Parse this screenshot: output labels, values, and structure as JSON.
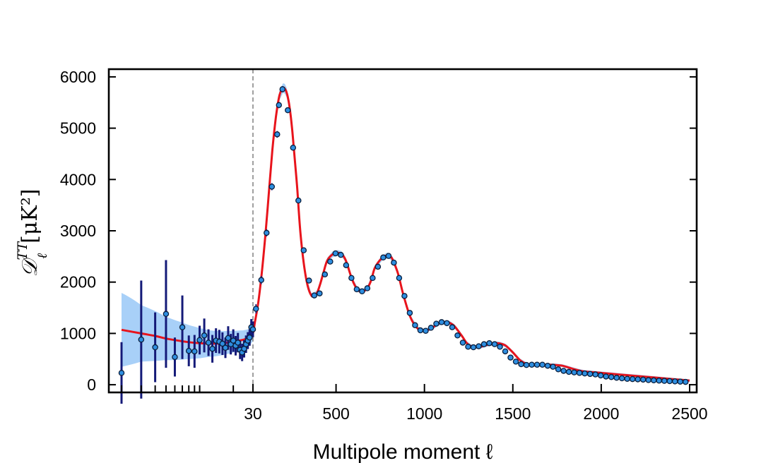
{
  "chart_data": {
    "type": "scatter",
    "title": "",
    "xlabel": "Multipole moment ℓ",
    "ylabel_main": "𝒟",
    "ylabel_sub": "ℓ",
    "ylabel_sup": "TT",
    "ylabel_unit": "[μK²]",
    "x_scale": "hybrid: logarithmic for ℓ ≤ 30, linear for ℓ ≥ 30",
    "xlim": [
      2,
      2500
    ],
    "ylim": [
      -150,
      6150
    ],
    "grid": false,
    "x_tick_labels": [
      {
        "value": 30,
        "label": "30"
      },
      {
        "value": 500,
        "label": "500"
      },
      {
        "value": 1000,
        "label": "1000"
      },
      {
        "value": 1500,
        "label": "1500"
      },
      {
        "value": 2000,
        "label": "2000"
      },
      {
        "value": 2500,
        "label": "2500"
      }
    ],
    "x_minor_ticks_log": [
      2,
      3,
      4,
      5,
      6,
      7,
      8,
      9,
      10,
      20
    ],
    "y_ticks": [
      0,
      1000,
      2000,
      3000,
      4000,
      5000,
      6000
    ],
    "y_tick_labels": [
      "0",
      "1000",
      "2000",
      "3000",
      "4000",
      "5000",
      "6000"
    ],
    "colors": {
      "model_line": "#e8141c",
      "uncertainty_band": "#a8d0f8",
      "marker_fill": "#2e8ee0",
      "marker_edge": "#0a1e3c",
      "error_bar": "#141a78",
      "divider": "#888888"
    },
    "series": [
      {
        "role": "best-fit model",
        "x": [
          2,
          3,
          4,
          5,
          6,
          8,
          10,
          13,
          16,
          20,
          25,
          28,
          30,
          40,
          60,
          80,
          100,
          120,
          140,
          160,
          180,
          200,
          210,
          220,
          230,
          240,
          250,
          260,
          280,
          300,
          330,
          360,
          390,
          410,
          430,
          450,
          480,
          510,
          530,
          545,
          560,
          590,
          620,
          650,
          680,
          700,
          720,
          760,
          790,
          805,
          820,
          850,
          880,
          920,
          960,
          1000,
          1040,
          1080,
          1120,
          1140,
          1170,
          1210,
          1240,
          1270,
          1300,
          1330,
          1370,
          1410,
          1430,
          1460,
          1500,
          1540,
          1580,
          1620,
          1660,
          1700,
          1740,
          1780,
          1820,
          1860,
          1900,
          2000,
          2100,
          2200,
          2300,
          2400,
          2500
        ],
        "y": [
          1070,
          1000,
          950,
          900,
          870,
          830,
          810,
          800,
          810,
          840,
          880,
          930,
          1000,
          1200,
          1600,
          2180,
          2900,
          3740,
          4580,
          5220,
          5640,
          5780,
          5770,
          5700,
          5560,
          5340,
          5040,
          4660,
          3840,
          2900,
          2080,
          1740,
          1780,
          1960,
          2200,
          2420,
          2540,
          2570,
          2550,
          2490,
          2380,
          2060,
          1860,
          1810,
          1900,
          2050,
          2280,
          2470,
          2520,
          2500,
          2440,
          2170,
          1760,
          1320,
          1100,
          1050,
          1100,
          1190,
          1220,
          1210,
          1140,
          960,
          810,
          740,
          730,
          750,
          790,
          810,
          800,
          760,
          630,
          480,
          400,
          380,
          385,
          390,
          385,
          370,
          330,
          290,
          260,
          230,
          200,
          170,
          140,
          110,
          80
        ]
      },
      {
        "role": "low-ℓ band half-width",
        "x": [
          2,
          3,
          5,
          8,
          12,
          20,
          30
        ],
        "y": [
          720,
          550,
          420,
          330,
          260,
          210,
          150
        ]
      },
      {
        "role": "low-ℓ measurements",
        "x": [
          2,
          3,
          4,
          5,
          6,
          7,
          8,
          9,
          10,
          11,
          12,
          13,
          14,
          15,
          16,
          17,
          18,
          19,
          20,
          21,
          22,
          23,
          24,
          25,
          26,
          27,
          28,
          29,
          30
        ],
        "y": [
          230,
          880,
          730,
          1380,
          540,
          1120,
          660,
          650,
          870,
          960,
          820,
          700,
          860,
          840,
          800,
          720,
          910,
          790,
          860,
          760,
          820,
          680,
          630,
          700,
          790,
          860,
          920,
          1120,
          1080
        ],
        "err": [
          600,
          1150,
          680,
          1050,
          380,
          620,
          300,
          320,
          280,
          330,
          260,
          270,
          240,
          230,
          220,
          200,
          230,
          200,
          220,
          190,
          190,
          180,
          170,
          170,
          170,
          165,
          160,
          160,
          155
        ]
      },
      {
        "role": "high-ℓ binned measurements",
        "x": [
          47,
          77,
          107,
          137,
          167,
          177,
          197,
          227,
          257,
          287,
          317,
          347,
          377,
          407,
          437,
          467,
          497,
          527,
          557,
          587,
          617,
          647,
          677,
          707,
          737,
          767,
          797,
          827,
          857,
          887,
          917,
          947,
          977,
          1007,
          1037,
          1067,
          1097,
          1127,
          1157,
          1187,
          1217,
          1247,
          1277,
          1307,
          1337,
          1367,
          1397,
          1427,
          1457,
          1487,
          1517,
          1547,
          1577,
          1607,
          1637,
          1667,
          1697,
          1727,
          1757,
          1787,
          1817,
          1847,
          1877,
          1907,
          1937,
          1967,
          1997,
          2027,
          2057,
          2087,
          2117,
          2147,
          2177,
          2207,
          2237,
          2267,
          2297,
          2327,
          2357,
          2387,
          2417,
          2447,
          2477
        ],
        "y": [
          1480,
          2040,
          2960,
          3860,
          4880,
          5450,
          5760,
          5350,
          4620,
          3590,
          2620,
          2030,
          1740,
          1780,
          2150,
          2400,
          2560,
          2530,
          2330,
          2080,
          1860,
          1820,
          1880,
          2080,
          2300,
          2480,
          2510,
          2380,
          2080,
          1730,
          1400,
          1160,
          1060,
          1050,
          1110,
          1190,
          1220,
          1200,
          1120,
          960,
          820,
          740,
          730,
          750,
          790,
          810,
          790,
          740,
          650,
          530,
          450,
          400,
          385,
          390,
          390,
          390,
          370,
          350,
          300,
          270,
          250,
          240,
          230,
          220,
          210,
          200,
          180,
          160,
          150,
          135,
          125,
          115,
          110,
          105,
          100,
          90,
          85,
          80,
          75,
          70,
          65,
          60,
          55
        ],
        "err": [
          90,
          80,
          70,
          70,
          65,
          60,
          60,
          55,
          50,
          45,
          40,
          35,
          30,
          30,
          30,
          30,
          30,
          30,
          30,
          30,
          25,
          25,
          25,
          25,
          25,
          25,
          25,
          25,
          25,
          20,
          20,
          20,
          20,
          20,
          20,
          20,
          20,
          20,
          20,
          20,
          20,
          20,
          20,
          20,
          20,
          20,
          20,
          20,
          20,
          20,
          20,
          20,
          20,
          20,
          20,
          20,
          20,
          20,
          20,
          20,
          20,
          20,
          20,
          20,
          20,
          20,
          20,
          20,
          20,
          20,
          20,
          20,
          20,
          20,
          20,
          20,
          20,
          20,
          20,
          20,
          20,
          20,
          20
        ]
      }
    ]
  }
}
